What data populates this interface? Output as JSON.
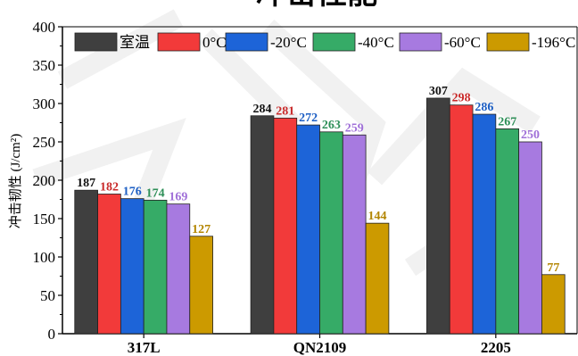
{
  "chart_data": {
    "type": "bar",
    "title": "冲击性能",
    "xlabel": "",
    "ylabel": "冲击韧性 (J/cm²)",
    "categories": [
      "317L",
      "QN2109",
      "2205"
    ],
    "ylim": [
      0,
      400
    ],
    "yticks": [
      "0",
      "50",
      "100",
      "150",
      "200",
      "250",
      "300",
      "350",
      "400"
    ],
    "grid": false,
    "legend_position": "top",
    "series": [
      {
        "name": "室温",
        "color": "#3f3f3f",
        "values": [
          187,
          284,
          307
        ]
      },
      {
        "name": "0°C",
        "color": "#f23a3a",
        "values": [
          182,
          281,
          298
        ]
      },
      {
        "name": "-20°C",
        "color": "#1d64d8",
        "values": [
          176,
          272,
          286
        ]
      },
      {
        "name": "-40°C",
        "color": "#36ab67",
        "values": [
          174,
          263,
          267
        ]
      },
      {
        "name": "-60°C",
        "color": "#a77ae0",
        "values": [
          169,
          259,
          250
        ]
      },
      {
        "name": "-196°C",
        "color": "#cc9a00",
        "values": [
          127,
          144,
          77
        ]
      }
    ],
    "label_colors": [
      "#111111",
      "#c92a2a",
      "#1d5fc4",
      "#2e8f58",
      "#a070d8",
      "#b38500"
    ]
  }
}
